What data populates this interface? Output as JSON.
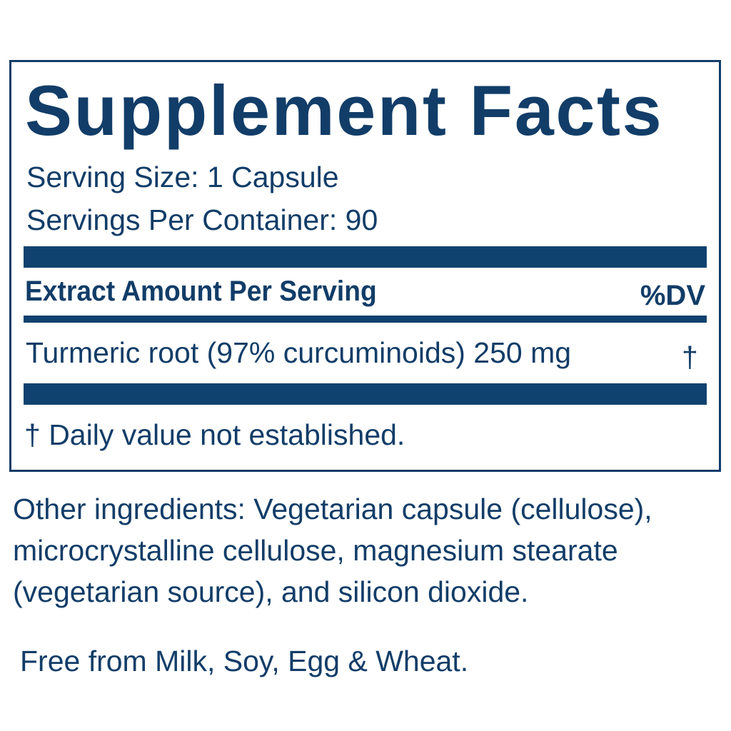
{
  "panel": {
    "title": "Supplement Facts",
    "serving_size": "Serving Size: 1 Capsule",
    "servings_per_container": "Servings Per Container: 90",
    "header": {
      "left": "Extract Amount Per Serving",
      "right": "%DV"
    },
    "rows": [
      {
        "ingredient": "Turmeric root (97% curcuminoids) 250 mg",
        "dv": "†"
      }
    ],
    "footnote": "† Daily value not established."
  },
  "other_ingredients": [
    "Other ingredients: Vegetarian capsule (cellulose),",
    "microcrystalline cellulose, magnesium stearate",
    "(vegetarian source), and silicon dioxide."
  ],
  "allergen_note": "Free from Milk, Soy, Egg & Wheat.",
  "colors": {
    "brand_blue": "#123d68"
  }
}
